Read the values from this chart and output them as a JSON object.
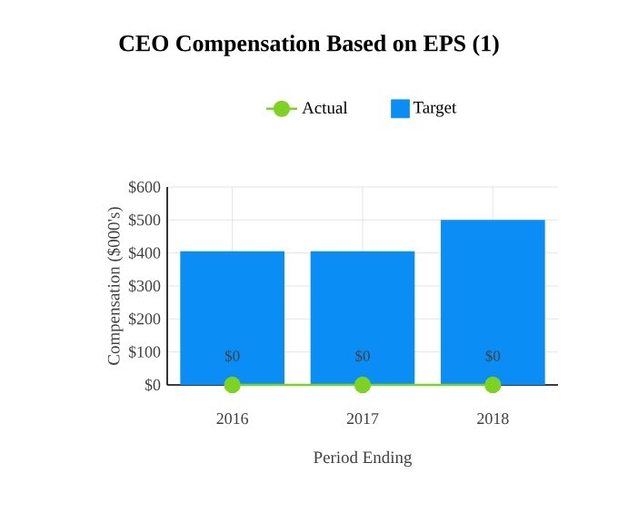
{
  "chart_data": {
    "type": "bar",
    "title": "CEO Compensation Based on EPS (1)",
    "xlabel": "Period Ending",
    "ylabel": "Compensation ($000's)",
    "categories": [
      "2016",
      "2017",
      "2018"
    ],
    "series": [
      {
        "name": "Actual",
        "type": "line",
        "color": "#7ed321",
        "marker": "circle",
        "values": [
          0,
          0,
          0
        ],
        "value_labels": [
          "$0",
          "$0",
          "$0"
        ]
      },
      {
        "name": "Target",
        "color": "#0a8ef5",
        "values": [
          405,
          405,
          500
        ]
      }
    ],
    "ylim": [
      0,
      600
    ],
    "yticks": [
      {
        "value": 0,
        "label": "$0"
      },
      {
        "value": 100,
        "label": "$100"
      },
      {
        "value": 200,
        "label": "$200"
      },
      {
        "value": 300,
        "label": "$300"
      },
      {
        "value": 400,
        "label": "$400"
      },
      {
        "value": 500,
        "label": "$500"
      },
      {
        "value": 600,
        "label": "$600"
      }
    ],
    "grid": true,
    "legend": "top"
  }
}
